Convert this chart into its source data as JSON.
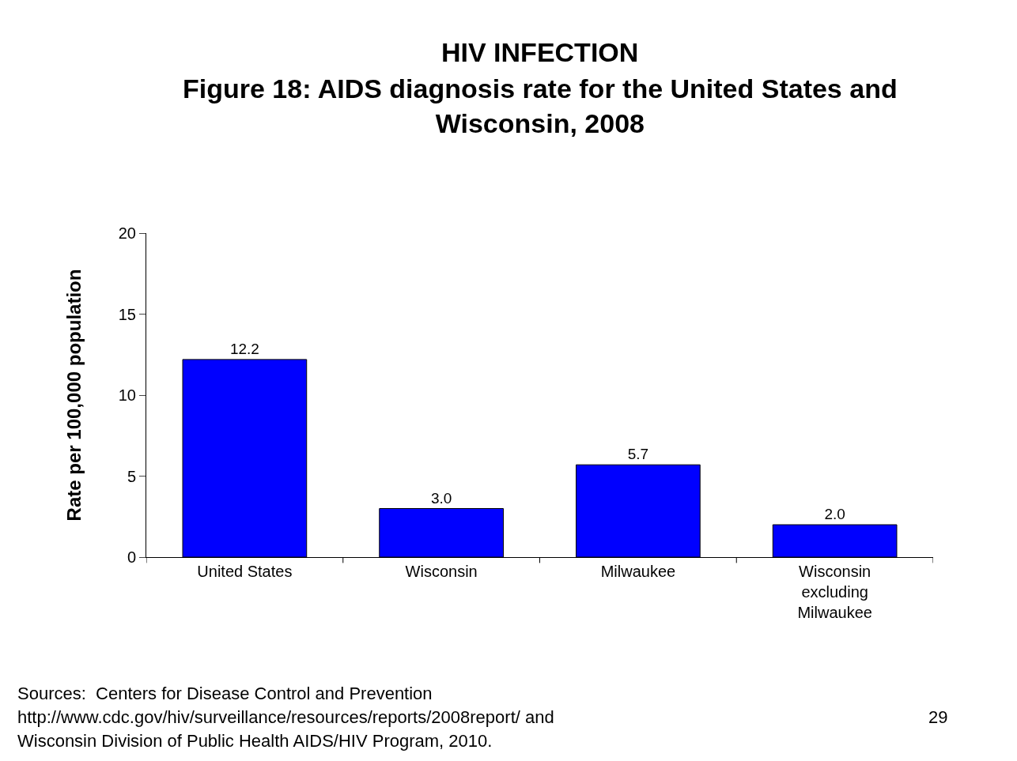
{
  "chart_data": {
    "type": "bar",
    "title": "HIV INFECTION",
    "subtitle": "Figure 18: AIDS diagnosis rate for the United States and Wisconsin, 2008",
    "ylabel": "Rate per 100,000 population",
    "categories": [
      "United States",
      "Wisconsin",
      "Milwaukee",
      "Wisconsin excluding Milwaukee"
    ],
    "values": [
      12.2,
      3.0,
      5.7,
      2.0
    ],
    "value_labels": [
      "12.2",
      "3.0",
      "5.7",
      "2.0"
    ],
    "color": "#0000ff",
    "ylim": [
      0,
      20
    ],
    "yticks": [
      0,
      5,
      10,
      15,
      20
    ],
    "grid": false,
    "legend": false,
    "annotations": [
      "Sources:  Centers for Disease Control and Prevention",
      "http://www.cdc.gov/hiv/surveillance/resources/reports/2008report/ and",
      "Wisconsin Division of Public Health AIDS/HIV Program, 2010.",
      "29"
    ]
  }
}
